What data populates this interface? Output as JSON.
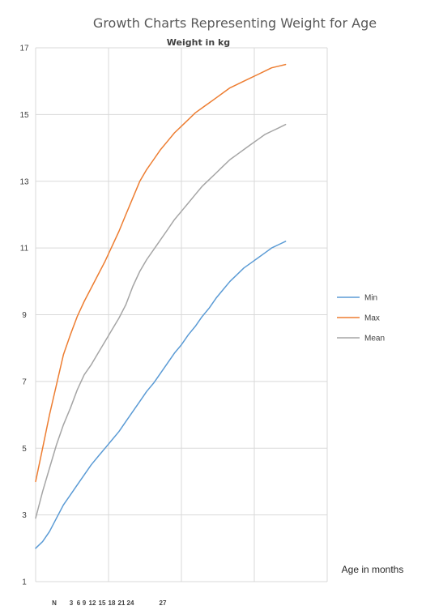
{
  "chart_data": {
    "type": "line",
    "title": "Growth Charts Representing Weight for Age",
    "ylabel": "Weight in kg",
    "xlabel": "Age in months",
    "ylim": [
      1,
      17
    ],
    "yticks": [
      1,
      3,
      5,
      7,
      9,
      11,
      13,
      15,
      17
    ],
    "x": [
      0,
      1,
      2,
      3,
      4,
      5,
      6,
      7,
      8,
      9,
      10,
      11,
      12,
      13,
      14,
      15,
      16,
      17,
      18,
      19,
      20,
      21,
      22,
      23,
      24,
      25,
      26,
      27,
      28,
      29,
      30,
      31,
      32,
      33,
      34,
      35,
      36
    ],
    "xlim": [
      0,
      42
    ],
    "xticks_printed": [
      "N",
      "3",
      "6",
      "9",
      "12",
      "15",
      "18",
      "21",
      "24",
      "27"
    ],
    "xgridlines": [
      10.5,
      21,
      31.5,
      42
    ],
    "grid": true,
    "legend_position": "right",
    "series": [
      {
        "name": "Min",
        "color": "#5b9bd5",
        "values": [
          2.0,
          2.2,
          2.5,
          2.9,
          3.3,
          3.6,
          3.9,
          4.2,
          4.5,
          4.75,
          5.0,
          5.25,
          5.5,
          5.8,
          6.1,
          6.4,
          6.7,
          6.95,
          7.25,
          7.55,
          7.85,
          8.1,
          8.4,
          8.65,
          8.95,
          9.2,
          9.5,
          9.75,
          10.0,
          10.2,
          10.4,
          10.55,
          10.7,
          10.85,
          11.0,
          11.1,
          11.2
        ]
      },
      {
        "name": "Max",
        "color": "#ed7d31",
        "values": [
          4.0,
          5.0,
          6.0,
          6.9,
          7.8,
          8.4,
          8.95,
          9.4,
          9.8,
          10.2,
          10.6,
          11.05,
          11.5,
          12.0,
          12.5,
          13.0,
          13.35,
          13.65,
          13.95,
          14.2,
          14.45,
          14.65,
          14.85,
          15.05,
          15.2,
          15.35,
          15.5,
          15.65,
          15.8,
          15.9,
          16.0,
          16.1,
          16.2,
          16.3,
          16.4,
          16.45,
          16.5
        ]
      },
      {
        "name": "Mean",
        "color": "#a5a5a5",
        "values": [
          2.9,
          3.7,
          4.4,
          5.1,
          5.7,
          6.2,
          6.75,
          7.2,
          7.5,
          7.85,
          8.2,
          8.55,
          8.9,
          9.3,
          9.85,
          10.3,
          10.65,
          10.95,
          11.25,
          11.55,
          11.85,
          12.1,
          12.35,
          12.6,
          12.85,
          13.05,
          13.25,
          13.45,
          13.65,
          13.8,
          13.95,
          14.1,
          14.25,
          14.4,
          14.5,
          14.6,
          14.7
        ]
      }
    ]
  }
}
